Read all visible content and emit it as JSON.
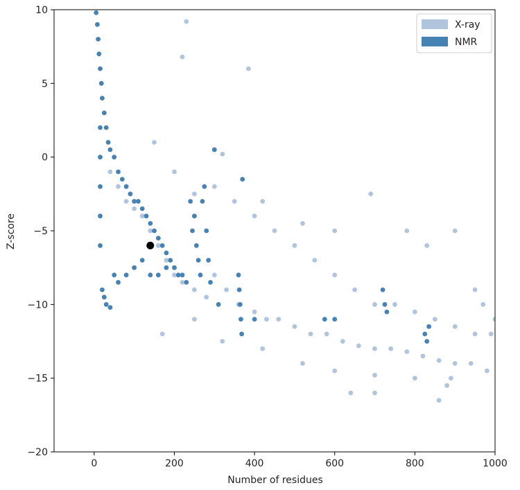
{
  "chart_data": {
    "type": "scatter",
    "title": "",
    "xlabel": "Number of residues",
    "ylabel": "Z-score",
    "xlim": [
      -100,
      1000
    ],
    "ylim": [
      -20,
      10
    ],
    "xticks": [
      0,
      200,
      400,
      600,
      800,
      1000
    ],
    "yticks": [
      10,
      5,
      0,
      -5,
      -10,
      -15,
      -20
    ],
    "grid": false,
    "legend": {
      "placement": "top-right"
    },
    "series": [
      {
        "name": "X-ray",
        "color": "#b0c4de",
        "points": [
          [
            40,
            -1
          ],
          [
            60,
            -2
          ],
          [
            80,
            -3
          ],
          [
            100,
            -3.5
          ],
          [
            120,
            -4
          ],
          [
            140,
            -5
          ],
          [
            160,
            -6
          ],
          [
            180,
            -7
          ],
          [
            200,
            -8
          ],
          [
            220,
            -8.5
          ],
          [
            250,
            -9
          ],
          [
            280,
            -9.5
          ],
          [
            300,
            -8
          ],
          [
            330,
            -9
          ],
          [
            360,
            -10
          ],
          [
            400,
            -10.5
          ],
          [
            430,
            -11
          ],
          [
            460,
            -11
          ],
          [
            500,
            -11.5
          ],
          [
            540,
            -12
          ],
          [
            580,
            -12
          ],
          [
            620,
            -12.5
          ],
          [
            660,
            -12.8
          ],
          [
            700,
            -13
          ],
          [
            740,
            -13
          ],
          [
            780,
            -13.2
          ],
          [
            820,
            -13.5
          ],
          [
            860,
            -13.8
          ],
          [
            900,
            -14
          ],
          [
            940,
            -14
          ],
          [
            980,
            -14.5
          ],
          [
            1000,
            -11
          ],
          [
            300,
            -2
          ],
          [
            350,
            -3
          ],
          [
            400,
            -4
          ],
          [
            450,
            -5
          ],
          [
            500,
            -6
          ],
          [
            550,
            -7
          ],
          [
            600,
            -8
          ],
          [
            650,
            -9
          ],
          [
            700,
            -10
          ],
          [
            750,
            -10
          ],
          [
            800,
            -10.5
          ],
          [
            850,
            -11
          ],
          [
            900,
            -11.5
          ],
          [
            950,
            -12
          ],
          [
            990,
            -12
          ],
          [
            230,
            9.2
          ],
          [
            220,
            6.8
          ],
          [
            385,
            6
          ],
          [
            300,
            0.5
          ],
          [
            320,
            0.2
          ],
          [
            420,
            -3
          ],
          [
            520,
            -4.5
          ],
          [
            600,
            -5
          ],
          [
            690,
            -2.5
          ],
          [
            780,
            -5
          ],
          [
            830,
            -6
          ],
          [
            900,
            -5
          ],
          [
            640,
            -16
          ],
          [
            700,
            -16
          ],
          [
            860,
            -16.5
          ],
          [
            890,
            -15
          ],
          [
            950,
            -9
          ],
          [
            970,
            -10
          ],
          [
            170,
            -12
          ],
          [
            250,
            -11
          ],
          [
            320,
            -12.5
          ],
          [
            420,
            -13
          ],
          [
            520,
            -14
          ],
          [
            600,
            -14.5
          ],
          [
            700,
            -14.8
          ],
          [
            800,
            -15
          ],
          [
            880,
            -15.5
          ],
          [
            150,
            1
          ],
          [
            200,
            -1
          ],
          [
            250,
            -2.5
          ]
        ]
      },
      {
        "name": "NMR",
        "color": "#4682b4",
        "points": [
          [
            5,
            9.8
          ],
          [
            8,
            9
          ],
          [
            10,
            8
          ],
          [
            12,
            7
          ],
          [
            15,
            6
          ],
          [
            18,
            5
          ],
          [
            20,
            4
          ],
          [
            25,
            3
          ],
          [
            30,
            2
          ],
          [
            35,
            1
          ],
          [
            40,
            0.5
          ],
          [
            50,
            0
          ],
          [
            60,
            -1
          ],
          [
            70,
            -1.5
          ],
          [
            80,
            -2
          ],
          [
            90,
            -2.5
          ],
          [
            100,
            -3
          ],
          [
            110,
            -3
          ],
          [
            120,
            -3.5
          ],
          [
            130,
            -4
          ],
          [
            140,
            -4.5
          ],
          [
            150,
            -5
          ],
          [
            160,
            -5.5
          ],
          [
            170,
            -6
          ],
          [
            180,
            -6.5
          ],
          [
            190,
            -7
          ],
          [
            200,
            -7.5
          ],
          [
            210,
            -8
          ],
          [
            220,
            -8
          ],
          [
            230,
            -8.5
          ],
          [
            20,
            -9
          ],
          [
            25,
            -9.5
          ],
          [
            30,
            -10
          ],
          [
            40,
            -10.2
          ],
          [
            50,
            -8
          ],
          [
            60,
            -8.5
          ],
          [
            80,
            -8
          ],
          [
            100,
            -7.5
          ],
          [
            120,
            -7
          ],
          [
            140,
            -8
          ],
          [
            160,
            -8
          ],
          [
            180,
            -7.5
          ],
          [
            15,
            -6
          ],
          [
            15,
            -4
          ],
          [
            15,
            -2
          ],
          [
            15,
            0
          ],
          [
            15,
            2
          ],
          [
            250,
            -4
          ],
          [
            255,
            -6
          ],
          [
            260,
            -7
          ],
          [
            265,
            -8
          ],
          [
            280,
            -5
          ],
          [
            285,
            -7
          ],
          [
            290,
            -8.5
          ],
          [
            300,
            0.5
          ],
          [
            310,
            -10
          ],
          [
            360,
            -8
          ],
          [
            362,
            -9
          ],
          [
            364,
            -10
          ],
          [
            366,
            -11
          ],
          [
            368,
            -12
          ],
          [
            370,
            -1.5
          ],
          [
            400,
            -11
          ],
          [
            575,
            -11
          ],
          [
            600,
            -11
          ],
          [
            720,
            -9
          ],
          [
            725,
            -10
          ],
          [
            730,
            -10.5
          ],
          [
            825,
            -12
          ],
          [
            830,
            -12.5
          ],
          [
            835,
            -11.5
          ],
          [
            240,
            -3
          ],
          [
            245,
            -5
          ],
          [
            270,
            -3
          ],
          [
            275,
            -2
          ]
        ]
      }
    ],
    "highlight": {
      "x": 140,
      "y": -6,
      "color": "#000000"
    }
  },
  "legend": {
    "items": [
      {
        "label": "X-ray",
        "color": "#b0c4de"
      },
      {
        "label": "NMR",
        "color": "#4682b4"
      }
    ]
  }
}
